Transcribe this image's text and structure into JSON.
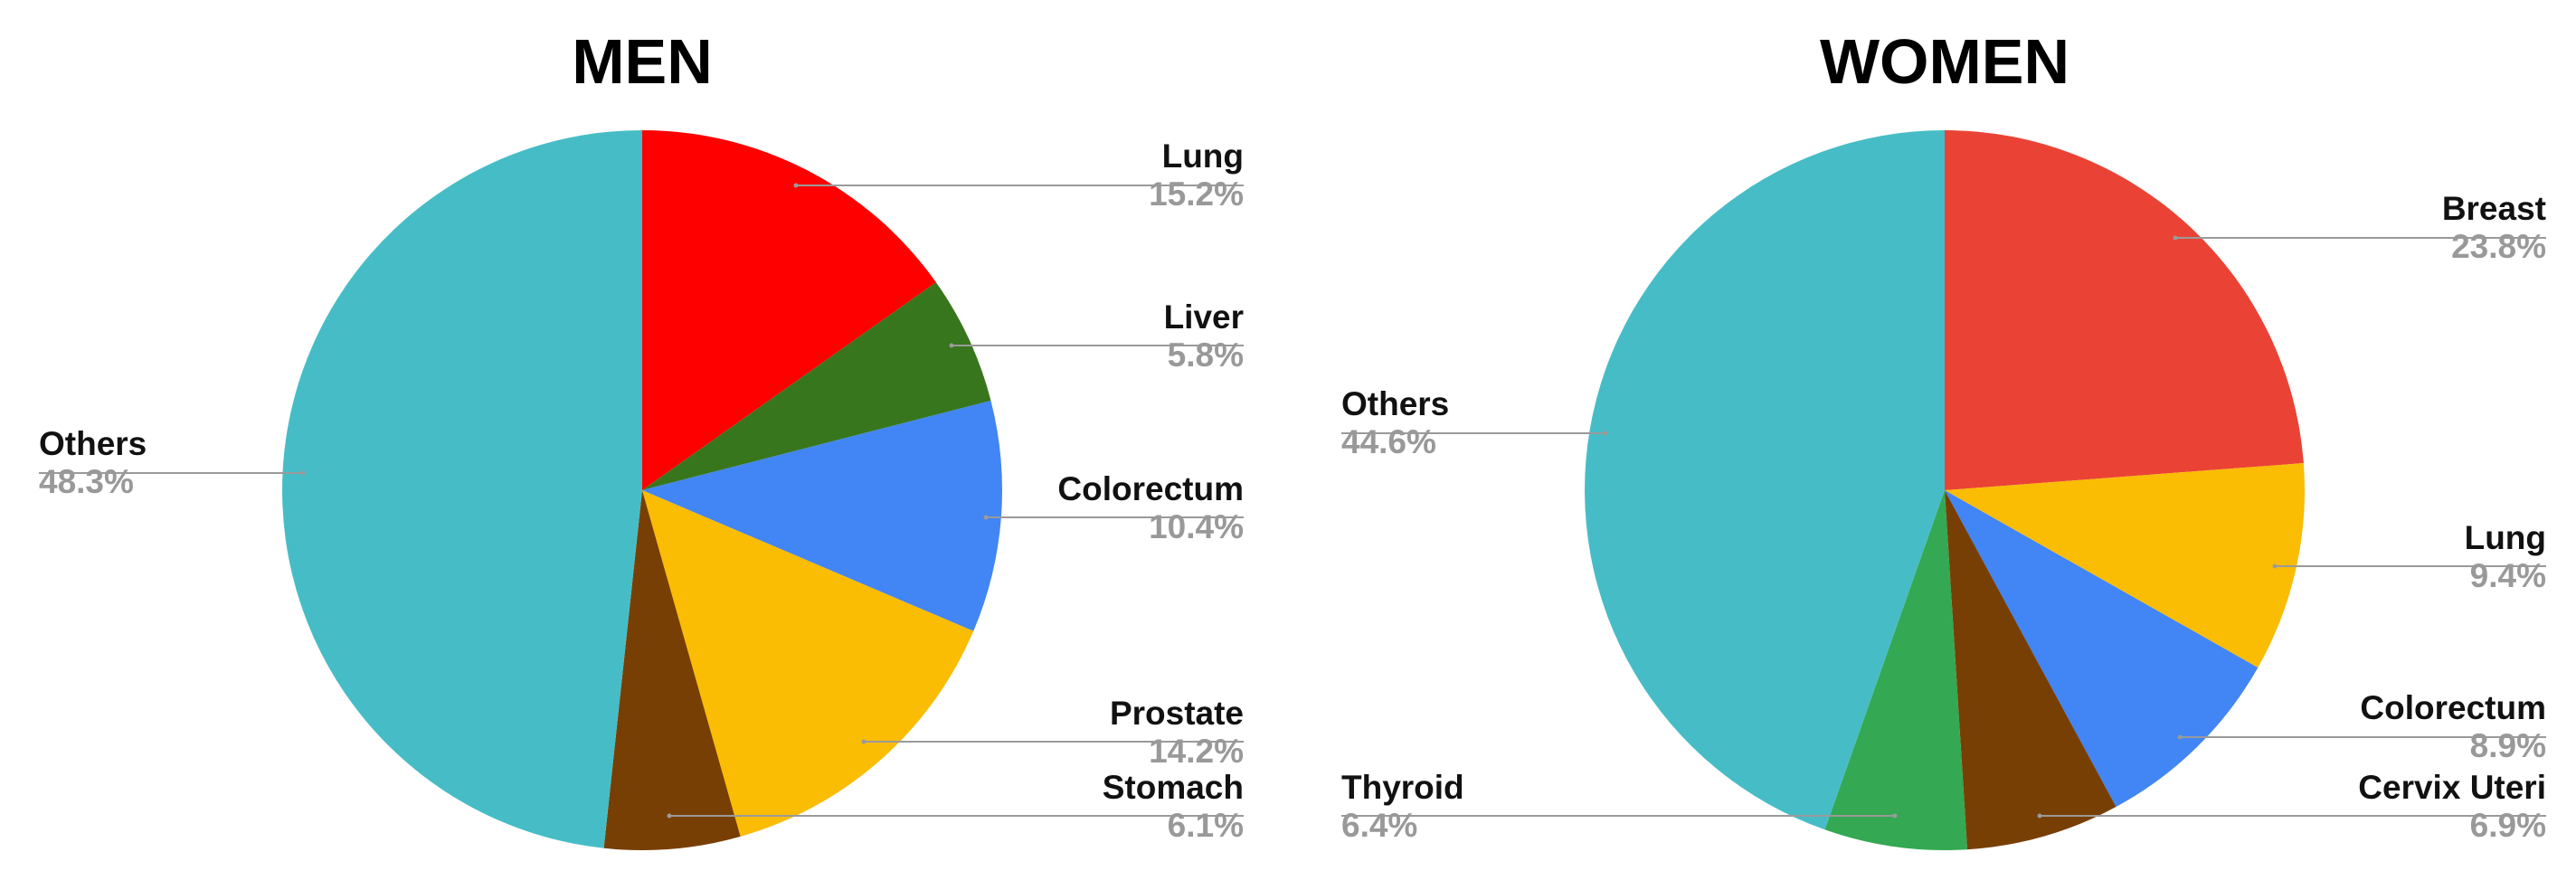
{
  "colors": {
    "label_text": "#111111",
    "percent_text": "#999999",
    "leader_line": "#9a9a9a"
  },
  "chart_data": [
    {
      "type": "pie",
      "title": "MEN",
      "slices": [
        {
          "label": "Lung",
          "value": 15.2,
          "percent_label": "15.2%",
          "color": "#ff0000"
        },
        {
          "label": "Liver",
          "value": 5.8,
          "percent_label": "5.8%",
          "color": "#38761d"
        },
        {
          "label": "Colorectum",
          "value": 10.4,
          "percent_label": "10.4%",
          "color": "#4285f4"
        },
        {
          "label": "Prostate",
          "value": 14.2,
          "percent_label": "14.2%",
          "color": "#fbbc04"
        },
        {
          "label": "Stomach",
          "value": 6.1,
          "percent_label": "6.1%",
          "color": "#783f04"
        },
        {
          "label": "Others",
          "value": 48.3,
          "percent_label": "48.3%",
          "color": "#46bdc6"
        }
      ],
      "start_angle_deg": 0,
      "direction": "clockwise",
      "legend": "none"
    },
    {
      "type": "pie",
      "title": "WOMEN",
      "slices": [
        {
          "label": "Breast",
          "value": 23.8,
          "percent_label": "23.8%",
          "color": "#ea4335"
        },
        {
          "label": "Lung",
          "value": 9.4,
          "percent_label": "9.4%",
          "color": "#fbbc04"
        },
        {
          "label": "Colorectum",
          "value": 8.9,
          "percent_label": "8.9%",
          "color": "#4285f4"
        },
        {
          "label": "Cervix Uteri",
          "value": 6.9,
          "percent_label": "6.9%",
          "color": "#783f04"
        },
        {
          "label": "Thyroid",
          "value": 6.4,
          "percent_label": "6.4%",
          "color": "#34a853"
        },
        {
          "label": "Others",
          "value": 44.6,
          "percent_label": "44.6%",
          "color": "#46bdc6"
        }
      ],
      "start_angle_deg": 0,
      "direction": "clockwise",
      "legend": "none"
    }
  ]
}
